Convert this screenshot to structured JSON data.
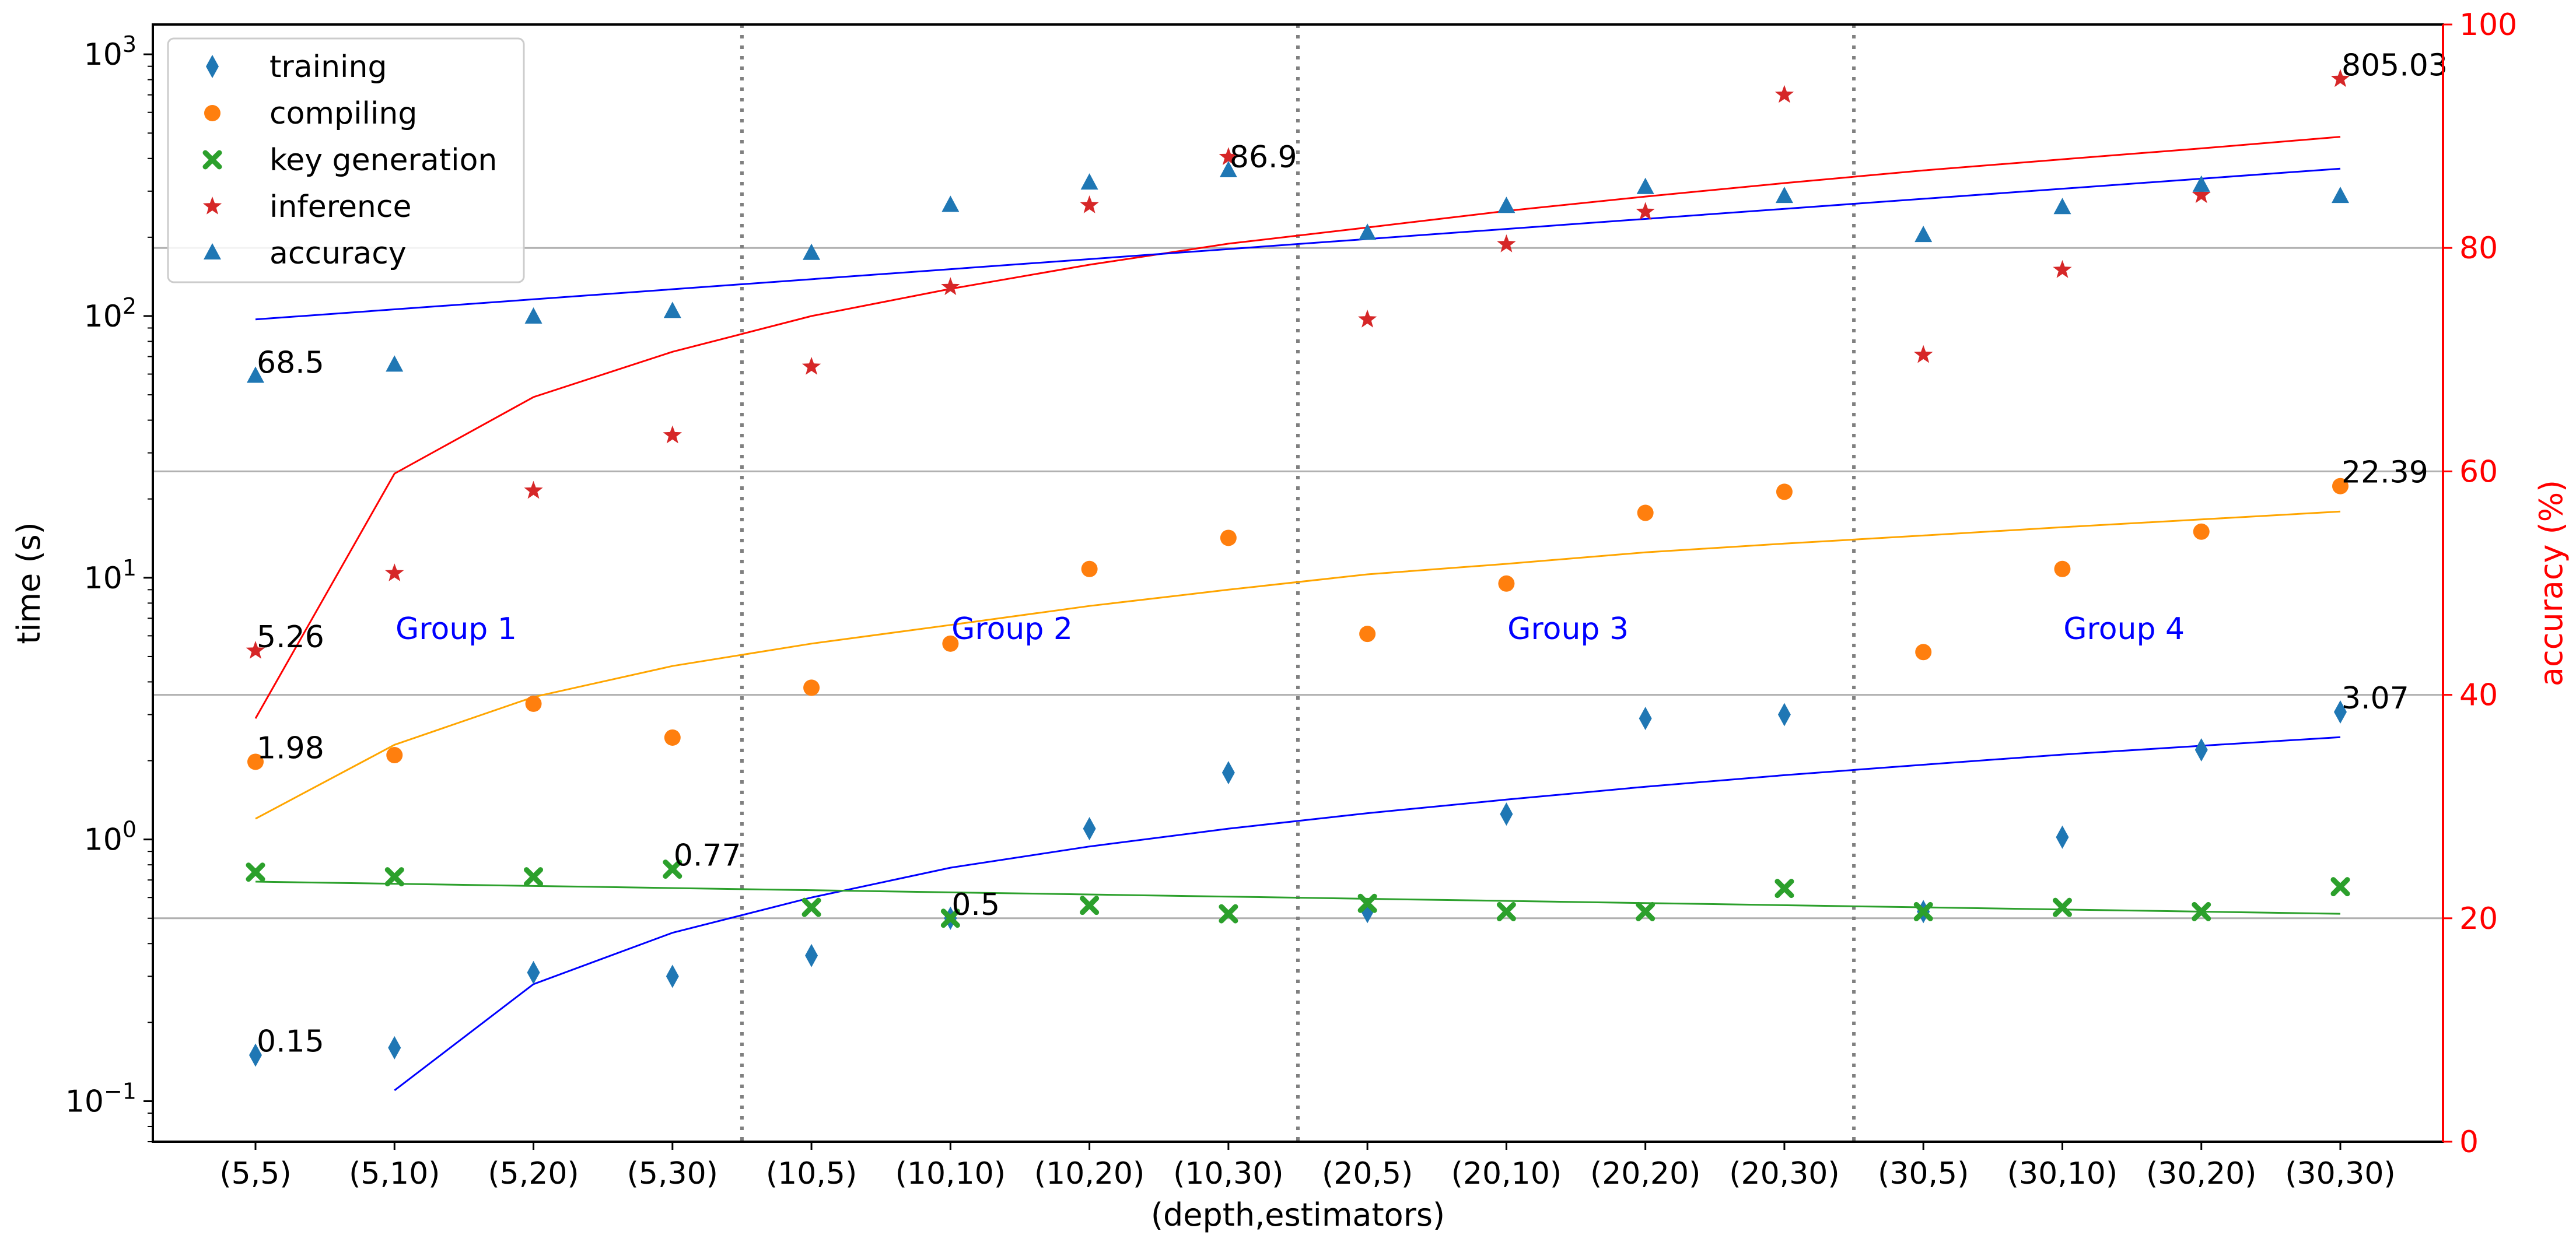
{
  "chart_data": {
    "type": "scatter",
    "xlabel": "(depth,estimators)",
    "ylabel_left": "time (s)",
    "ylabel_right": "accuracy (%)",
    "categories": [
      "(5,5)",
      "(5,10)",
      "(5,20)",
      "(5,30)",
      "(10,5)",
      "(10,10)",
      "(10,20)",
      "(10,30)",
      "(20,5)",
      "(20,10)",
      "(20,20)",
      "(20,30)",
      "(30,5)",
      "(30,10)",
      "(30,20)",
      "(30,30)"
    ],
    "y_left_scale": "log",
    "y_left_range": [
      0.07,
      1300
    ],
    "y_left_ticks": [
      {
        "value": 0.1,
        "base": "10",
        "exp": "−1"
      },
      {
        "value": 1,
        "base": "10",
        "exp": "0"
      },
      {
        "value": 10,
        "base": "10",
        "exp": "1"
      },
      {
        "value": 100,
        "base": "10",
        "exp": "2"
      },
      {
        "value": 1000,
        "base": "10",
        "exp": "3"
      }
    ],
    "y_right_range": [
      0,
      100
    ],
    "y_right_ticks": [
      "0",
      "20",
      "40",
      "60",
      "80",
      "100"
    ],
    "grid": "horizontal lines at right-axis 20, 40, 60, 80",
    "group_separators_after": [
      3,
      7,
      11
    ],
    "groups": [
      "Group 1",
      "Group 2",
      "Group 3",
      "Group 4"
    ],
    "legend_position": "top-left",
    "series": [
      {
        "name": "training",
        "axis": "left",
        "marker": "diamond",
        "color": "#1f77b4",
        "values": [
          0.15,
          0.16,
          0.31,
          0.3,
          0.36,
          0.5,
          1.1,
          1.8,
          0.53,
          1.25,
          2.9,
          3.0,
          0.53,
          1.02,
          2.2,
          3.07
        ]
      },
      {
        "name": "compiling",
        "axis": "left",
        "marker": "circle",
        "color": "#ff7f0e",
        "values": [
          1.98,
          2.1,
          3.3,
          2.45,
          3.8,
          5.6,
          10.8,
          14.2,
          6.1,
          9.5,
          17.7,
          21.3,
          5.2,
          10.8,
          15.0,
          22.39
        ]
      },
      {
        "name": "key generation",
        "axis": "left",
        "marker": "x",
        "color": "#2ca02c",
        "values": [
          0.75,
          0.72,
          0.72,
          0.77,
          0.55,
          0.5,
          0.56,
          0.52,
          0.57,
          0.53,
          0.53,
          0.65,
          0.53,
          0.55,
          0.53,
          0.66
        ]
      },
      {
        "name": "inference",
        "axis": "left",
        "marker": "star",
        "color": "#d62728",
        "values": [
          5.26,
          10.4,
          21.5,
          35,
          64,
          129,
          265,
          405,
          97,
          188,
          250,
          700,
          71,
          150,
          290,
          805.03
        ]
      },
      {
        "name": "accuracy",
        "axis": "right",
        "marker": "triangle",
        "color": "#1f77b4",
        "values": [
          68.5,
          69.5,
          73.8,
          74.3,
          79.5,
          83.8,
          85.8,
          86.9,
          81.3,
          83.7,
          85.4,
          84.6,
          81.1,
          83.6,
          85.6,
          84.6
        ]
      }
    ],
    "trendlines": [
      {
        "color": "#0000ff",
        "axis": "left",
        "points": [
          [
            1,
            0.11
          ],
          [
            2,
            0.28
          ],
          [
            3,
            0.44
          ],
          [
            4,
            0.6
          ],
          [
            5,
            0.78
          ],
          [
            6,
            0.94
          ],
          [
            7,
            1.1
          ],
          [
            8,
            1.26
          ],
          [
            9,
            1.42
          ],
          [
            10,
            1.59
          ],
          [
            11,
            1.76
          ],
          [
            12,
            1.93
          ],
          [
            13,
            2.11
          ],
          [
            14,
            2.28
          ],
          [
            15,
            2.46
          ]
        ]
      },
      {
        "color": "#ffa500",
        "axis": "left",
        "points": [
          [
            0,
            1.2
          ],
          [
            1,
            2.3
          ],
          [
            2,
            3.5
          ],
          [
            3,
            4.6
          ],
          [
            4,
            5.6
          ],
          [
            5,
            6.6
          ],
          [
            6,
            7.8
          ],
          [
            7,
            9.0
          ],
          [
            8,
            10.3
          ],
          [
            9,
            11.3
          ],
          [
            10,
            12.5
          ],
          [
            11,
            13.5
          ],
          [
            12,
            14.5
          ],
          [
            13,
            15.6
          ],
          [
            14,
            16.7
          ],
          [
            15,
            17.9
          ]
        ]
      },
      {
        "color": "#2ca02c",
        "axis": "left",
        "points": [
          [
            0,
            0.69
          ],
          [
            15,
            0.52
          ]
        ]
      },
      {
        "color": "#ff0000",
        "axis": "left",
        "points": [
          [
            0,
            2.9
          ],
          [
            1,
            25
          ],
          [
            2,
            49
          ],
          [
            3,
            73
          ],
          [
            4,
            100
          ],
          [
            5,
            127
          ],
          [
            6,
            157
          ],
          [
            7,
            189
          ],
          [
            8,
            218
          ],
          [
            9,
            252
          ],
          [
            10,
            286
          ],
          [
            11,
            322
          ],
          [
            12,
            360
          ],
          [
            13,
            397
          ],
          [
            14,
            437
          ],
          [
            15,
            484
          ]
        ]
      },
      {
        "color": "#0000ff",
        "axis": "right",
        "points": [
          [
            0,
            73.6
          ],
          [
            15,
            87.1
          ]
        ]
      }
    ],
    "annotations": [
      {
        "text": "68.5",
        "series": "accuracy",
        "index": 0
      },
      {
        "text": "86.9",
        "series": "accuracy",
        "index": 7
      },
      {
        "text": "805.03",
        "series": "inference",
        "index": 15
      },
      {
        "text": "5.26",
        "series": "inference",
        "index": 0
      },
      {
        "text": "22.39",
        "series": "compiling",
        "index": 15
      },
      {
        "text": "1.98",
        "series": "compiling",
        "index": 0
      },
      {
        "text": "0.77",
        "series": "key generation",
        "index": 3
      },
      {
        "text": "0.5",
        "series": "key generation",
        "index": 5
      },
      {
        "text": "3.07",
        "series": "training",
        "index": 15
      },
      {
        "text": "0.15",
        "series": "training",
        "index": 0
      }
    ]
  }
}
